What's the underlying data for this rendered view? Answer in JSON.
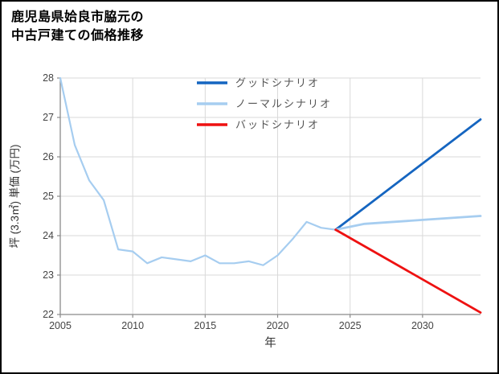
{
  "title": {
    "line1": "鹿児島県姶良市脇元の",
    "line2": "中古戸建ての価格推移"
  },
  "chart_data": {
    "type": "line",
    "title": "鹿児島県姶良市脇元の中古戸建ての価格推移",
    "xlabel": "年",
    "ylabel": "坪 (3.3㎡) 単価 (万円)",
    "xlim": [
      2005,
      2034
    ],
    "ylim": [
      22,
      28
    ],
    "xticks": [
      2005,
      2010,
      2015,
      2020,
      2025,
      2030
    ],
    "yticks": [
      22,
      23,
      24,
      25,
      26,
      27,
      28
    ],
    "grid": true,
    "legend_position": "top-center-inside",
    "colors": {
      "good": "#1565c0",
      "normal": "#a6cdf0",
      "bad": "#ee1111",
      "grid": "#d9d9d9",
      "axis": "#8a8a8a",
      "tick_text": "#444444",
      "label_text": "#333333"
    },
    "legend": [
      {
        "label": "グッドシナリオ",
        "color": "#1565c0"
      },
      {
        "label": "ノーマルシナリオ",
        "color": "#a6cdf0"
      },
      {
        "label": "バッドシナリオ",
        "color": "#ee1111"
      }
    ],
    "series": [
      {
        "name": "historical",
        "color": "#a6cdf0",
        "width": 2.2,
        "x": [
          2005,
          2006,
          2007,
          2008,
          2009,
          2010,
          2011,
          2012,
          2013,
          2014,
          2015,
          2016,
          2017,
          2018,
          2019,
          2020,
          2021,
          2022,
          2023,
          2024
        ],
        "y": [
          28.0,
          26.3,
          25.4,
          24.9,
          23.65,
          23.6,
          23.3,
          23.45,
          23.4,
          23.35,
          23.5,
          23.3,
          23.3,
          23.35,
          23.25,
          23.5,
          23.9,
          24.35,
          24.2,
          24.15
        ]
      },
      {
        "name": "good-scenario",
        "color": "#1565c0",
        "width": 2.8,
        "x": [
          2024,
          2034
        ],
        "y": [
          24.15,
          26.95
        ]
      },
      {
        "name": "normal-scenario",
        "color": "#a6cdf0",
        "width": 2.8,
        "x": [
          2024,
          2026,
          2030,
          2034
        ],
        "y": [
          24.15,
          24.3,
          24.4,
          24.5
        ]
      },
      {
        "name": "bad-scenario",
        "color": "#ee1111",
        "width": 2.8,
        "x": [
          2024,
          2034
        ],
        "y": [
          24.15,
          22.05
        ]
      }
    ]
  }
}
